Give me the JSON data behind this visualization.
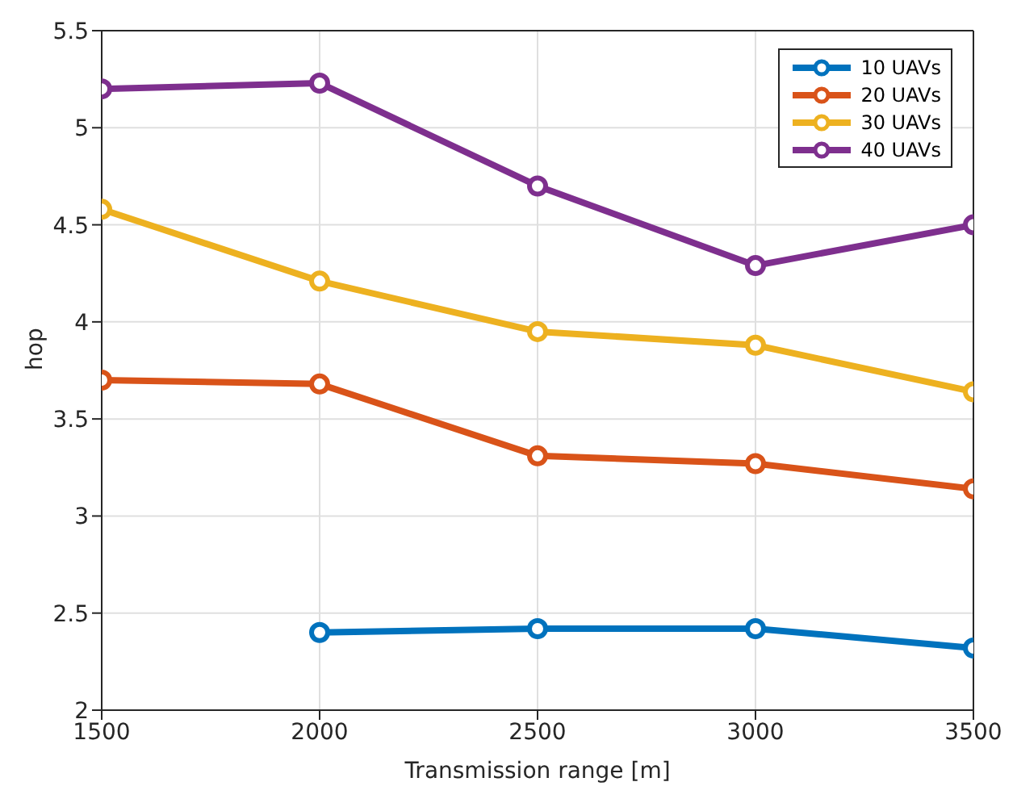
{
  "chart_data": {
    "type": "line",
    "xlabel": "Transmission range [m]",
    "ylabel": "hop",
    "x": [
      1500,
      2000,
      2500,
      3000,
      3500
    ],
    "series": [
      {
        "name": "10 UAVs",
        "color": "#0072bd",
        "values": [
          null,
          2.4,
          2.42,
          2.42,
          2.32
        ]
      },
      {
        "name": "20 UAVs",
        "color": "#d95319",
        "values": [
          3.7,
          3.68,
          3.31,
          3.27,
          3.14
        ]
      },
      {
        "name": "30 UAVs",
        "color": "#edb120",
        "values": [
          4.58,
          4.21,
          3.95,
          3.88,
          3.64
        ]
      },
      {
        "name": "40 UAVs",
        "color": "#7e2f8e",
        "values": [
          5.2,
          5.23,
          4.7,
          4.29,
          4.5
        ]
      }
    ],
    "xlim": [
      1500,
      3500
    ],
    "xticks": [
      1500,
      2000,
      2500,
      3000,
      3500
    ],
    "ylim": [
      2,
      5.5
    ],
    "yticks": [
      2,
      2.5,
      3,
      3.5,
      4,
      4.5,
      5,
      5.5
    ],
    "grid": true,
    "legend": "top right",
    "marker": "circle",
    "line_style": "solid"
  }
}
